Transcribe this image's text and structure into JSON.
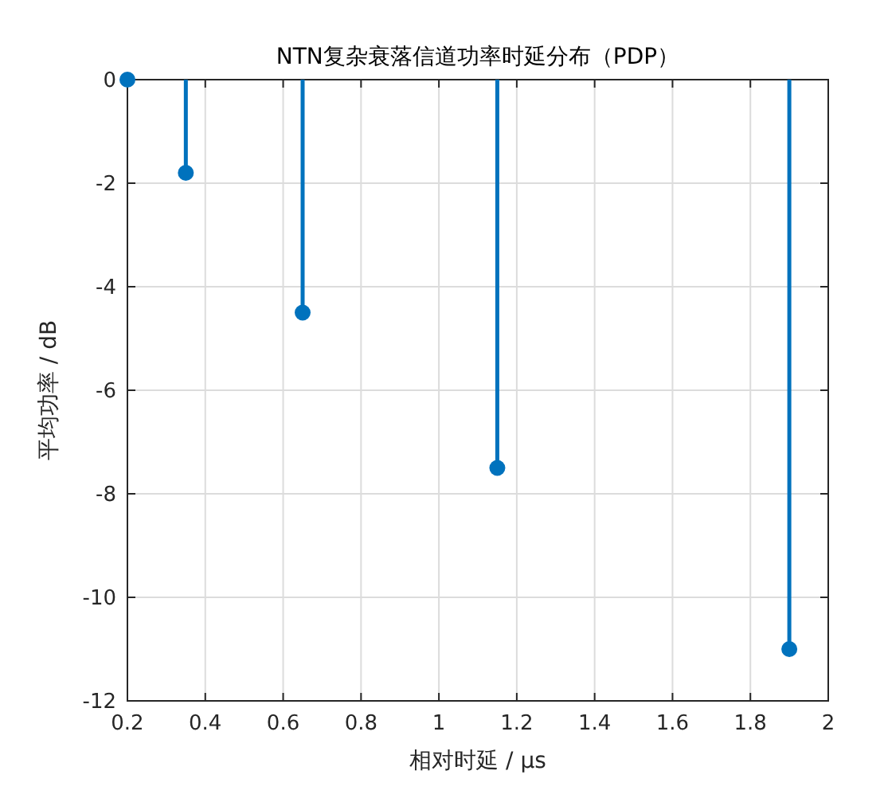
{
  "chart_data": {
    "type": "lollipop",
    "title": "NTN复杂衰落信道功率时延分布（PDP）",
    "xlabel": "相对时延 / μs",
    "ylabel": "平均功率 / dB",
    "x": [
      0.2,
      0.35,
      0.65,
      1.15,
      1.9
    ],
    "values": [
      0,
      -1.8,
      -4.5,
      -7.5,
      -11
    ],
    "color": "#0072bd",
    "xlim": [
      0.2,
      2
    ],
    "ylim": [
      -12,
      0
    ],
    "xticks": [
      0.2,
      0.4,
      0.6,
      0.8,
      1,
      1.2,
      1.4,
      1.6,
      1.8,
      2
    ],
    "yticks": [
      -12,
      -10,
      -8,
      -6,
      -4,
      -2,
      0
    ],
    "grid": true,
    "marker": "circle"
  }
}
